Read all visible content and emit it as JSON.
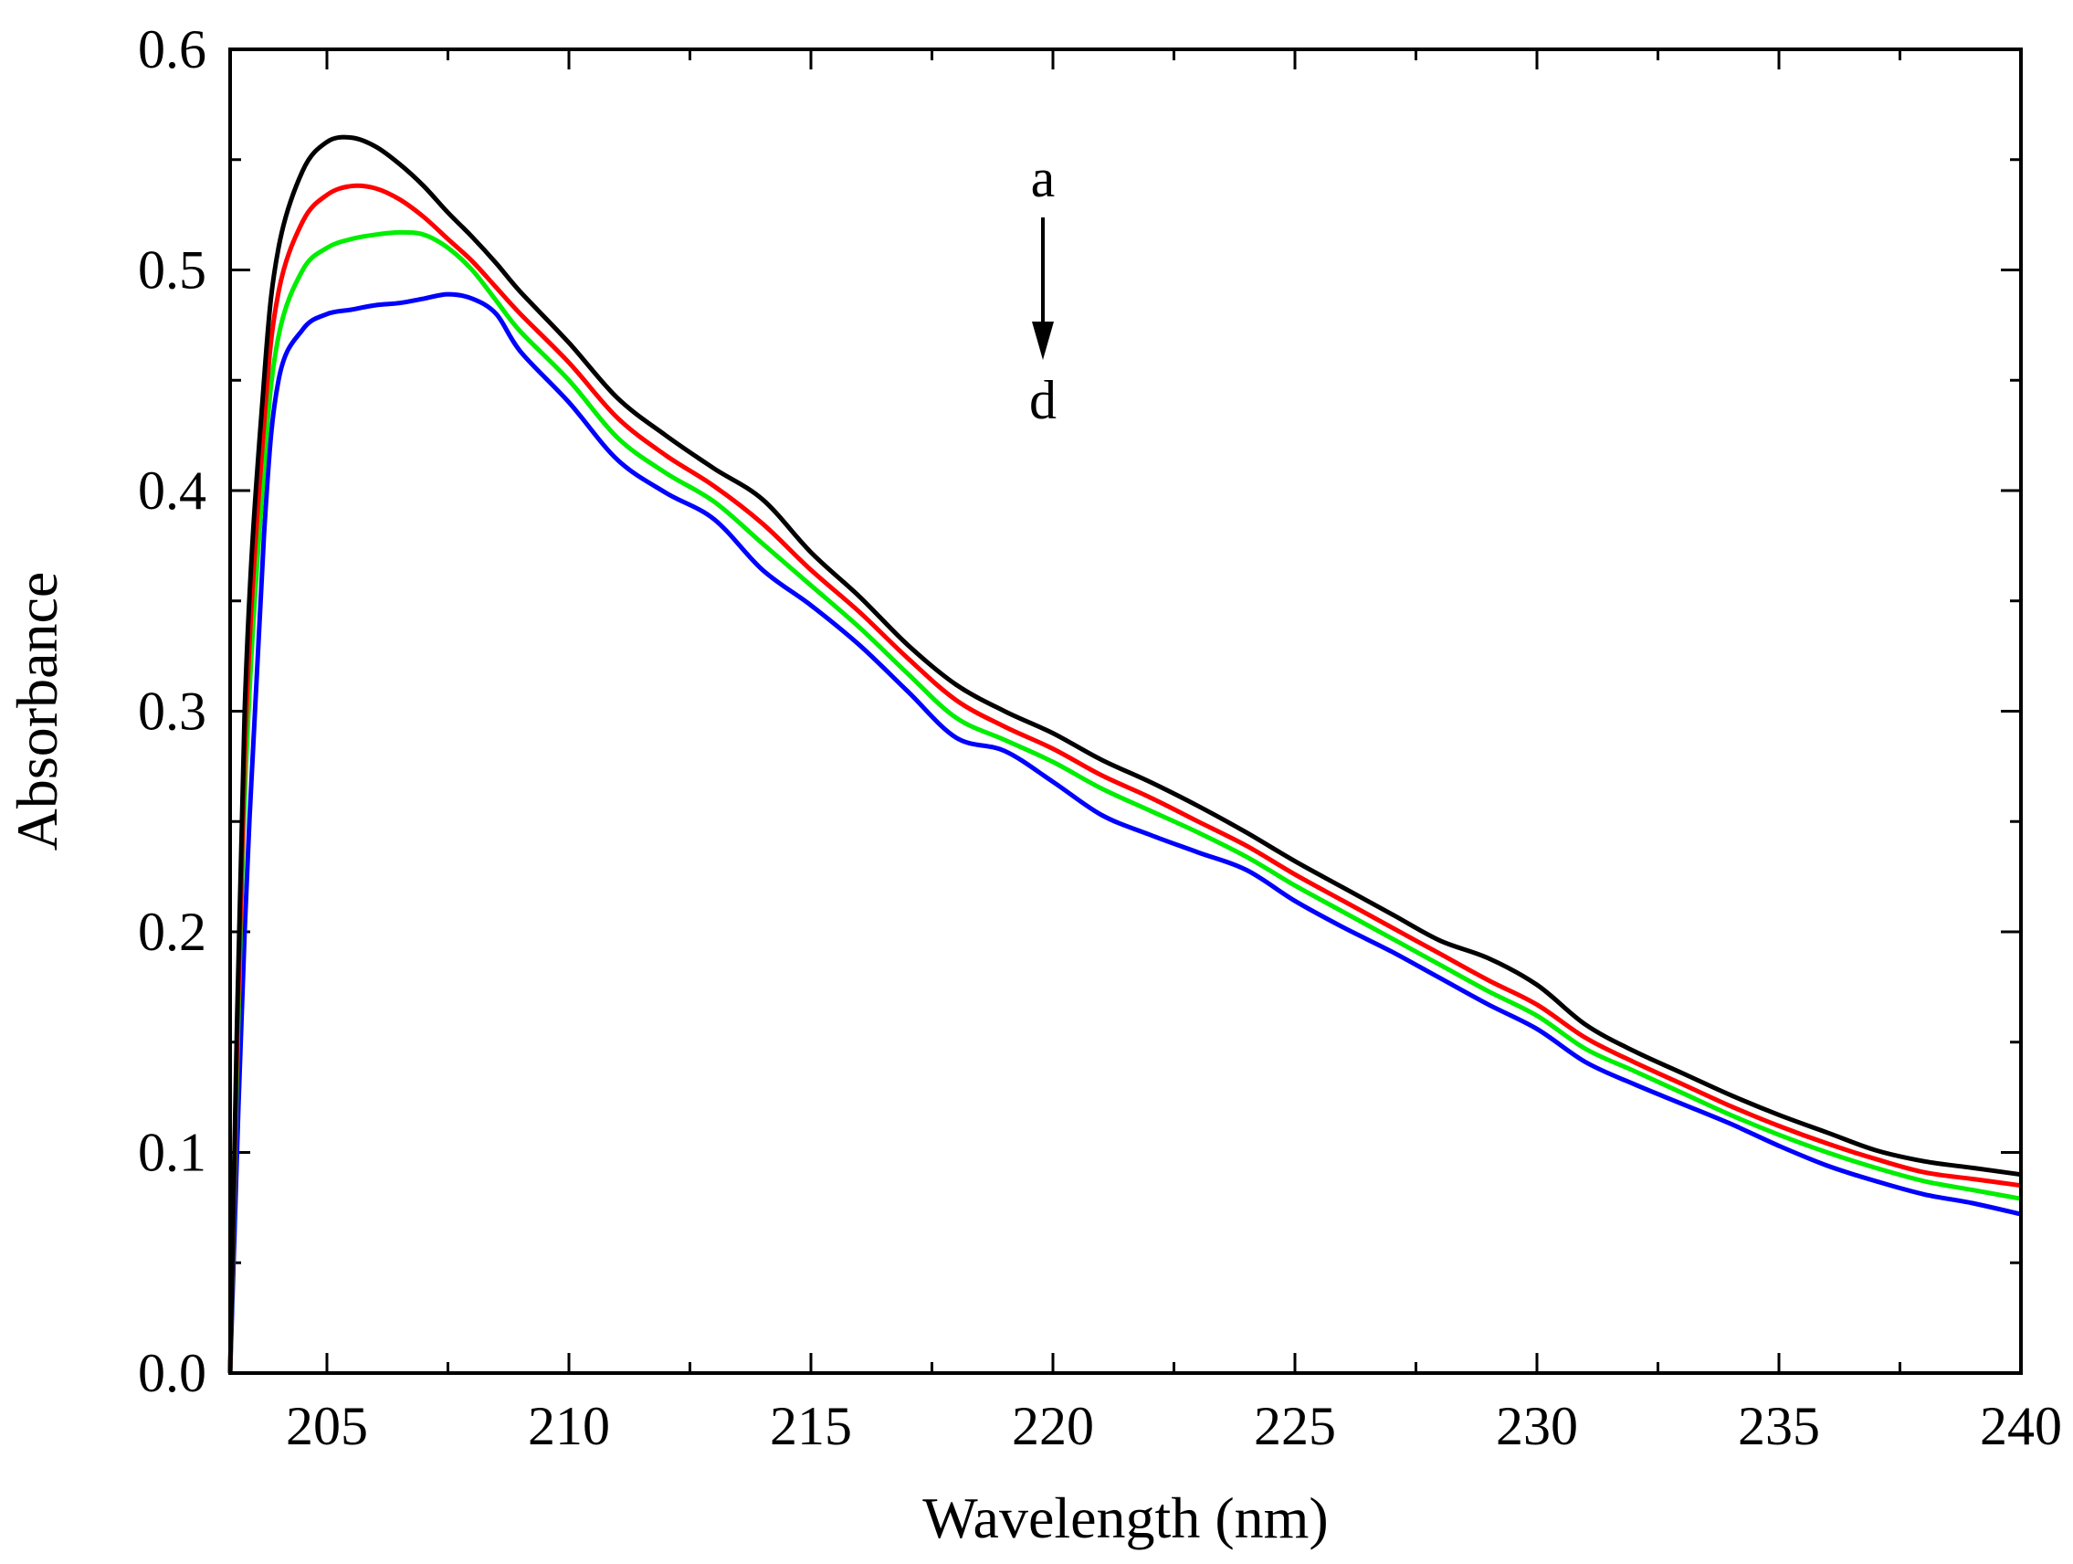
{
  "chart_data": {
    "type": "line",
    "title": "",
    "xlabel": "Wavelength (nm)",
    "ylabel": "Absorbance",
    "xlim": [
      203,
      240
    ],
    "ylim": [
      0.0,
      0.6
    ],
    "x_ticks": [
      205,
      210,
      215,
      220,
      225,
      230,
      235,
      240
    ],
    "x_tick_labels": [
      "205",
      "210",
      "215",
      "220",
      "225",
      "230",
      "235",
      "240"
    ],
    "y_ticks": [
      0.0,
      0.1,
      0.2,
      0.3,
      0.4,
      0.5,
      0.6
    ],
    "y_tick_labels": [
      "0.0",
      "0.1",
      "0.2",
      "0.3",
      "0.4",
      "0.5",
      "0.6"
    ],
    "grid": false,
    "legend": "none",
    "annotations": {
      "top": "a",
      "bottom": "d"
    },
    "x": [
      203.0,
      203.3,
      203.7,
      204.0,
      204.5,
      205.0,
      205.5,
      206.0,
      206.5,
      207.0,
      207.5,
      208.0,
      208.5,
      209.0,
      210.0,
      211.0,
      212.0,
      213.0,
      214.0,
      215.0,
      216.0,
      217.0,
      218.0,
      219.0,
      220.0,
      221.0,
      222.0,
      223.0,
      224.0,
      225.0,
      226.0,
      227.0,
      228.0,
      229.0,
      230.0,
      231.0,
      232.0,
      233.0,
      234.0,
      235.0,
      236.0,
      237.0,
      238.0,
      239.0,
      240.0
    ],
    "series": [
      {
        "color": "#000000",
        "values": [
          0.0,
          0.3,
          0.45,
          0.51,
          0.545,
          0.558,
          0.56,
          0.556,
          0.548,
          0.538,
          0.526,
          0.515,
          0.503,
          0.49,
          0.467,
          0.442,
          0.425,
          0.41,
          0.396,
          0.372,
          0.352,
          0.33,
          0.312,
          0.3,
          0.29,
          0.278,
          0.268,
          0.257,
          0.245,
          0.232,
          0.22,
          0.208,
          0.196,
          0.188,
          0.176,
          0.158,
          0.146,
          0.136,
          0.126,
          0.117,
          0.109,
          0.101,
          0.096,
          0.093,
          0.09
        ]
      },
      {
        "color": "#ff0000",
        "values": [
          0.0,
          0.28,
          0.43,
          0.49,
          0.522,
          0.534,
          0.538,
          0.537,
          0.532,
          0.524,
          0.514,
          0.504,
          0.492,
          0.48,
          0.458,
          0.433,
          0.416,
          0.402,
          0.385,
          0.364,
          0.345,
          0.324,
          0.305,
          0.293,
          0.283,
          0.271,
          0.261,
          0.25,
          0.239,
          0.226,
          0.214,
          0.202,
          0.19,
          0.178,
          0.167,
          0.152,
          0.141,
          0.131,
          0.121,
          0.112,
          0.104,
          0.097,
          0.091,
          0.088,
          0.085
        ]
      },
      {
        "color": "#00ee00",
        "values": [
          0.0,
          0.26,
          0.41,
          0.47,
          0.5,
          0.51,
          0.514,
          0.516,
          0.517,
          0.516,
          0.51,
          0.5,
          0.486,
          0.472,
          0.45,
          0.424,
          0.408,
          0.395,
          0.376,
          0.357,
          0.338,
          0.317,
          0.297,
          0.287,
          0.277,
          0.265,
          0.255,
          0.245,
          0.234,
          0.221,
          0.209,
          0.197,
          0.185,
          0.173,
          0.162,
          0.147,
          0.137,
          0.127,
          0.117,
          0.108,
          0.1,
          0.093,
          0.087,
          0.083,
          0.079
        ]
      },
      {
        "color": "#0000ff",
        "values": [
          0.0,
          0.2,
          0.38,
          0.45,
          0.473,
          0.48,
          0.482,
          0.484,
          0.485,
          0.487,
          0.489,
          0.487,
          0.48,
          0.463,
          0.44,
          0.414,
          0.399,
          0.387,
          0.364,
          0.348,
          0.33,
          0.309,
          0.288,
          0.282,
          0.268,
          0.253,
          0.244,
          0.236,
          0.228,
          0.214,
          0.202,
          0.191,
          0.179,
          0.167,
          0.156,
          0.141,
          0.131,
          0.122,
          0.113,
          0.103,
          0.094,
          0.087,
          0.081,
          0.077,
          0.072
        ]
      }
    ]
  }
}
